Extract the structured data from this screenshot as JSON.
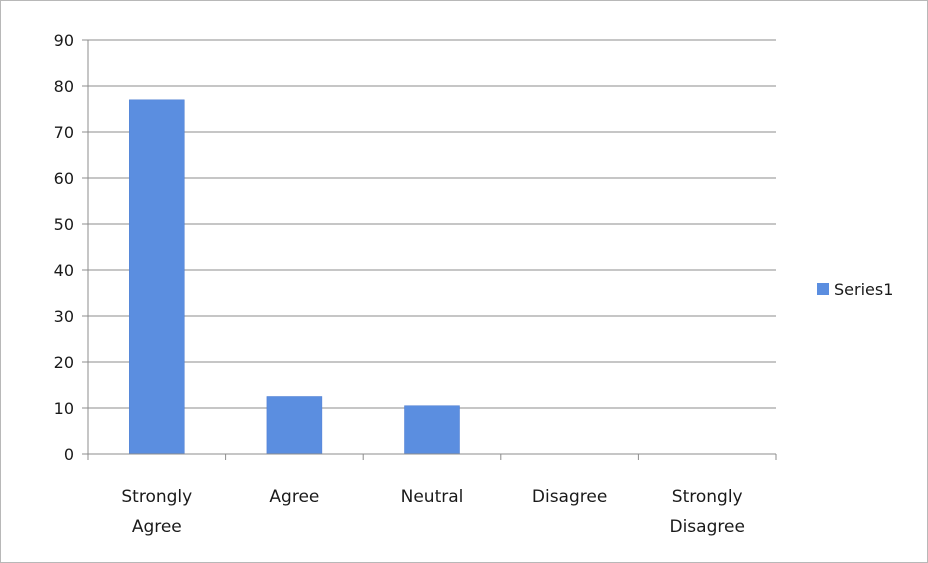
{
  "chart_data": {
    "type": "bar",
    "categories": [
      "Strongly Agree",
      "Agree",
      "Neutral",
      "Disagree",
      "Strongly Disagree"
    ],
    "category_lines": [
      [
        "Strongly",
        "Agree"
      ],
      [
        "Agree"
      ],
      [
        "Neutral"
      ],
      [
        "Disagree"
      ],
      [
        "Strongly",
        "Disagree"
      ]
    ],
    "series": [
      {
        "name": "Series1",
        "values": [
          77,
          12.5,
          10.5,
          0,
          0
        ]
      }
    ],
    "ylim": [
      0,
      90
    ],
    "yticks": [
      0,
      10,
      20,
      30,
      40,
      50,
      60,
      70,
      80,
      90
    ],
    "grid": true,
    "legend": "right",
    "colors": {
      "bar": "#5b8ee0",
      "bar_edge": "#4a7bd0",
      "grid": "#8c8c8c",
      "axis": "#8c8c8c"
    }
  }
}
